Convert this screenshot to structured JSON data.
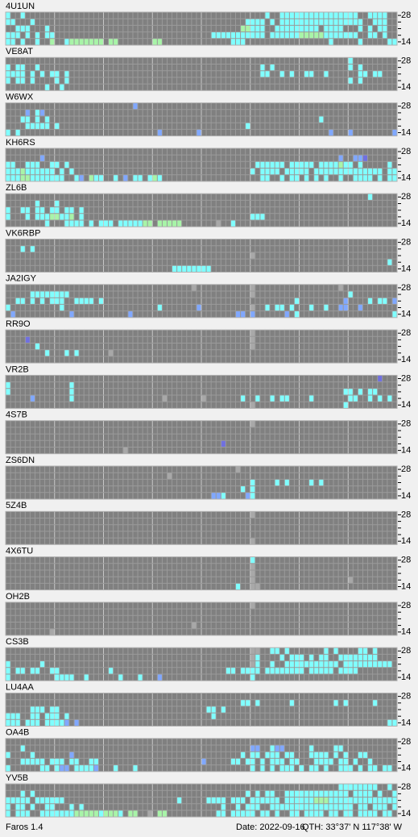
{
  "panels": [
    {
      "station": "4U1UN",
      "rows": [
        "c..c.................................................c..cccccccccccccccc..cccc...",
        "cc...c...........................................cccc.c.ccccccccccccccccc..ccc..c",
        "..ccc...c.......................................ggccc..ccccccccc.cccc...c.c.cc.",
        "ccc.c.c.cc................................ccccccccccc.ccccccgggggccccccc..cc.c.",
        "cc.c..c..g..cggggggg.gg.......gg..............ccc.................c.....c.....cc"
      ]
    },
    {
      "station": "VE8AT",
      "rows": [
        "......................................................................c.........",
        "c.cc..c.............................................c.c...............c.c.......",
        "cccc.c.c.cc.c.......................................cc..c.c..cc..c......cc.cc.....",
        "c.cc.c....c.c.........................................................c.c......",
        "........c..c...................................................................."
      ]
    },
    {
      "station": "W6WX",
      "rows": [
        "..........................b.....................................................",
        "....b.cb........................................................................",
        "...cc.c.c.......................................................c..................",
        "....ccccc.c......................................c..............................",
        "c.c............................b.......b..........................b...b........b"
      ]
    },
    {
      "station": "KH6RS",
      "rows": [
        "................................................................................",
        ".......b............................................................b..bbv........",
        "cc..ccc..cc.c......................................cccccc.ccccc.ccccgcc.c.....c.",
        "cccgcccccc.c.c....................................c.cccc.ccccc.cccccccccccccc.cc",
        "cccggccccccc..cb.gcc..c.b.cc.cgc....................cc..c.cc.c.c.c..c..cccc.c.cc.."
      ]
    },
    {
      "station": "ZL6B",
      "rows": [
        "..........................................................................c.....",
        "......c...c.....................................................................",
        "c..cc.cc.cc.cc.c................................................................",
        "c...c.cccggccg.c..................................ccc...........................",
        "........c...cccc.c.ccc.cccccgg ggggg.......k..c...................................."
      ]
    },
    {
      "station": "VK6RBP",
      "rows": [
        "................................................................................",
        "...c.c..........................................................................",
        "..................................................k.............................",
        "..............................................................................c.",
        "..................................cccccccc......................................"
      ]
    },
    {
      "station": "JA2IGY",
      "rows": [
        "......................................k...........k.................k.............",
        ".....cccccccc.....................................k...................c..........",
        "..cc.c.c.ccc..cccc.c.......................................c.........b....c.cc.bb...",
        "c..........c...................c.......b..........k..c.cc.c...c..c..bb..b.......",
        ".b...........b...........b.....................bb.b......b.c...................c."
      ]
    },
    {
      "station": "RR9O",
      "rows": [
        "..................................................k.............................",
        "....v.............................................k.............................",
        "......c...........................................k.............................",
        "........c...c.c......k..........................................................",
        "................................................................................"
      ]
    },
    {
      "station": "VR2B",
      "rows": [
        "............................................................................v...",
        "c............c...................................................................c...c..",
        "c............c.......................................................cc.c.cc.",
        ".....b.......c..................k.......k.......c..c..c.cc....c.......cc..c.c.c.",
        "..................................................k..................c.........."
      ]
    },
    {
      "station": "4S7B",
      "rows": [
        "..................................................k.............................",
        "................................................................................",
        "................................................................................",
        "............................................v...................................",
        "........................k......................................................."
      ]
    },
    {
      "station": "ZS6DN",
      "rows": [
        "...............................................k................................",
        ".................................k..............................................",
        "..................................................c....c.c....c.c...............",
        "................................................c.c.............................",
        "..........................................bbc....bc............................."
      ]
    },
    {
      "station": "5Z4B",
      "rows": [
        "..................................................k.............................",
        "................................................................................",
        "................................................................................",
        "................................................................................",
        "..................................................k............................."
      ]
    },
    {
      "station": "4X6TU",
      "rows": [
        "..................................................c.............................",
        "..................................................k.............................",
        "..................................................k.............................",
        "..................................................k...................k.........",
        "...............................................c..kk............................"
      ]
    },
    {
      "station": "OH2B",
      "rows": [
        "..................................................k.............................",
        "................................................................................",
        "................................................................................",
        "......................................k.........................................",
        ".........k......................................................................"
      ]
    },
    {
      "station": "CS3B",
      "rows": [
        "..................................................kk..cc.c.......c.c....cc.c....",
        "..................................................kc....c.ccc.c.cc..cccccccc....",
        "c......c..........................................kc..c..ccccccccccc.cccccccccc.",
        "c.cc.cc..cc..........c.......................cc.cccc.cccccccc.ccccc.cccc..........",
        "c.........cccc..c......c...c...b..................c.............................c."
      ]
    },
    {
      "station": "LU4AA",
      "rows": [
        "................................................................................",
        "................................................cc.c......c........c.c.....c......",
        ".....ccc.cc..............................cc.c....................................cc.c.",
        "ccc..cc.ccc.c.............................c.....................................ccc.",
        "ccc.ccc.ccccb.b...............................................................ccc."
      ]
    },
    {
      "station": "OA4B",
      "rows": [
        "................................................................................",
        "...c..............................................bb..cbb.....c....cc...........",
        "c....c.......b..................................c.cc.ccc.cc...cccc.c.c..cc......",
        "...ccccc.ccc.cc..cc.....................b.....cc.cc.c.ccc.cc...cccc.cc.c..c.....",
        "c......cc.cbb.ccccb...c...c.......................c.c.c.ccc.c.cc.c..ccc.c.cc.cc."
      ]
    },
    {
      "station": "YV5B",
      "rows": [
        "....................................................................cccccccc..c.",
        "...c.c...........................................c.c.cc..ccccccccccccc.cccc.c..c.cc.",
        "ccccc.cccccc.......................c.....cccc.ccc.cccccc.ccccccgggccccccccccccccc",
        "c.cc.c..cc...c.c............................c..c.ccc..ccccccccccccccccc.cc.ccc.ccc",
        "c.ccc..cccccccgggggcgggc.gg..k.gg..........cc.ccccc.cc.c..cc.cccc.cc.cc.cccc.cc."
      ]
    }
  ],
  "scale_labels": [
    "28",
    "14"
  ],
  "cell_colors": {
    "c": "#80ffff",
    "g": "#a8f4a8",
    "b": "#80a8ff",
    "v": "#7070e0",
    "k": "#a8a8a8"
  },
  "footer": {
    "app": "Faros 1.4",
    "date": "Date: 2022-09-16",
    "qth": "QTH: 33°37' N  117°38' W"
  }
}
